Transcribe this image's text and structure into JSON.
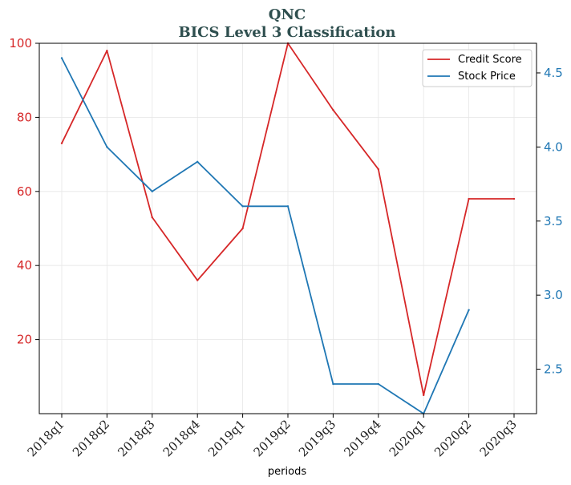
{
  "chart_data": {
    "type": "line",
    "title": "QNC",
    "subtitle": "BICS Level 3 Classification",
    "xlabel": "periods",
    "ylabel_left": "",
    "ylabel_right": "",
    "categories": [
      "2018q1",
      "2018q2",
      "2018q3",
      "2018q4",
      "2019q1",
      "2019q2",
      "2019q3",
      "2019q4",
      "2020q1",
      "2020q2",
      "2020q3"
    ],
    "y_left": {
      "min": 0,
      "max": 100,
      "ticks": [
        20,
        40,
        60,
        80,
        100
      ]
    },
    "y_right": {
      "min": 2.2,
      "max": 4.7,
      "ticks": [
        2.5,
        3.0,
        3.5,
        4.0,
        4.5
      ],
      "tick_labels": [
        "2.5",
        "3.0",
        "3.5",
        "4.0",
        "4.5"
      ]
    },
    "series": [
      {
        "name": "Credit Score",
        "axis": "left",
        "color": "#d62728",
        "values": [
          73,
          98,
          53,
          36,
          50,
          100,
          82,
          66,
          5,
          58,
          58
        ]
      },
      {
        "name": "Stock Price",
        "axis": "right",
        "color": "#1f77b4",
        "values": [
          4.6,
          4.0,
          3.7,
          3.9,
          3.6,
          3.6,
          2.4,
          2.4,
          2.2,
          2.9,
          null
        ]
      }
    ],
    "grid": true,
    "legend_position": "top-right"
  }
}
